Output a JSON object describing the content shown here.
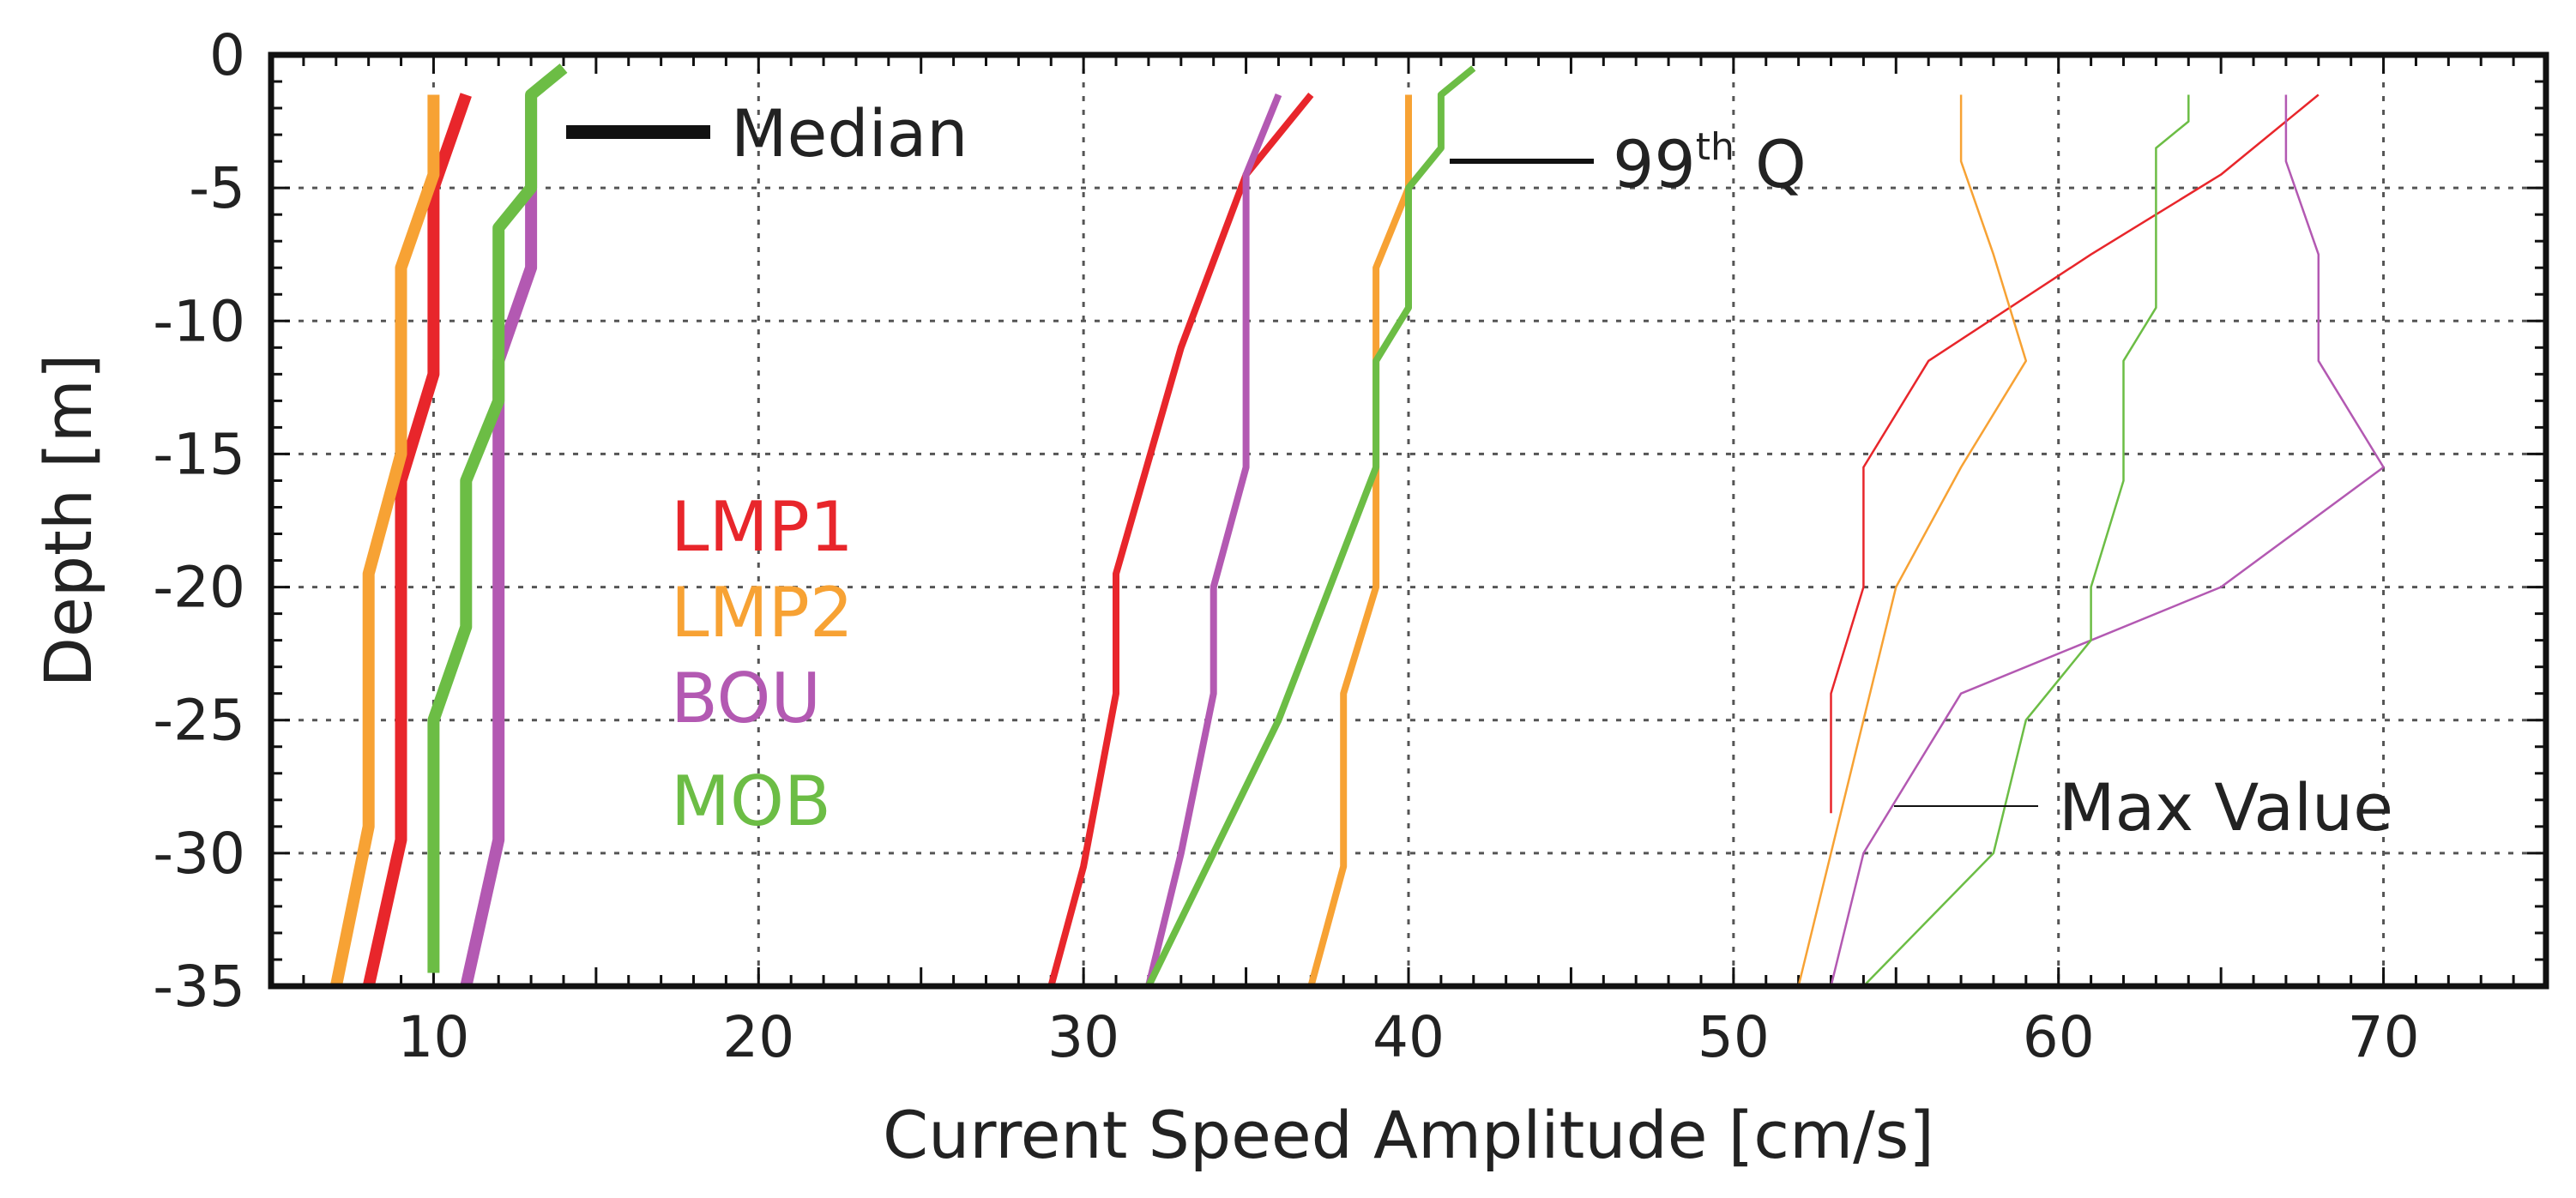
{
  "chart_data": {
    "type": "line",
    "xlabel": "Current Speed Amplitude [cm/s]",
    "ylabel": "Depth [m]",
    "xlim": [
      5,
      75
    ],
    "ylim": [
      -35,
      0
    ],
    "xticks": [
      10,
      20,
      30,
      40,
      50,
      60,
      70
    ],
    "xtick_labels": [
      "10",
      "20",
      "30",
      "40",
      "50",
      "60",
      "70"
    ],
    "yticks": [
      0,
      -5,
      -10,
      -15,
      -20,
      -25,
      -30,
      -35
    ],
    "ytick_labels": [
      "0",
      "-5",
      "-10",
      "-15",
      "-20",
      "-25",
      "-30",
      "-35"
    ],
    "grid": true,
    "colors": {
      "LMP1": "#e8262b",
      "LMP2": "#f7a234",
      "BOU": "#b359b2",
      "MOB": "#6cbd45"
    },
    "stations": [
      {
        "name": "LMP1",
        "color": "#e8262b"
      },
      {
        "name": "LMP2",
        "color": "#f7a234"
      },
      {
        "name": "BOU",
        "color": "#b359b2"
      },
      {
        "name": "MOB",
        "color": "#6cbd45"
      }
    ],
    "statistics": [
      {
        "name": "Median",
        "sup": "",
        "legend_label": "Median"
      },
      {
        "name": "99th Q",
        "sup": "th",
        "legend_label": "99",
        "legend_label_suffix": " Q"
      },
      {
        "name": "Max Value",
        "sup": "",
        "legend_label": "Max Value"
      }
    ],
    "series": [
      {
        "station": "LMP1",
        "statistic": "Median",
        "points": [
          [
            11,
            -1.5
          ],
          [
            10,
            -5
          ],
          [
            10,
            -12
          ],
          [
            9,
            -16
          ],
          [
            9,
            -29.5
          ],
          [
            8,
            -35
          ]
        ]
      },
      {
        "station": "LMP2",
        "statistic": "Median",
        "points": [
          [
            10,
            -1.5
          ],
          [
            10,
            -4.5
          ],
          [
            9,
            -8
          ],
          [
            9,
            -15
          ],
          [
            8,
            -19.5
          ],
          [
            8,
            -29
          ],
          [
            7,
            -35
          ]
        ]
      },
      {
        "station": "BOU",
        "statistic": "Median",
        "points": [
          [
            13,
            -1.5
          ],
          [
            13,
            -8
          ],
          [
            12,
            -11.5
          ],
          [
            12,
            -29.5
          ],
          [
            11,
            -35
          ]
        ]
      },
      {
        "station": "MOB",
        "statistic": "Median",
        "points": [
          [
            14,
            -0.5
          ],
          [
            13,
            -1.5
          ],
          [
            13,
            -5
          ],
          [
            12,
            -6.5
          ],
          [
            12,
            -13
          ],
          [
            11,
            -16
          ],
          [
            11,
            -21.5
          ],
          [
            10,
            -25
          ],
          [
            10,
            -34.5
          ]
        ]
      },
      {
        "station": "LMP1",
        "statistic": "99th Q",
        "points": [
          [
            37,
            -1.5
          ],
          [
            35,
            -4.5
          ],
          [
            33,
            -11
          ],
          [
            31,
            -19.5
          ],
          [
            31,
            -24
          ],
          [
            30,
            -30.5
          ],
          [
            29,
            -35
          ]
        ]
      },
      {
        "station": "LMP2",
        "statistic": "99th Q",
        "points": [
          [
            40,
            -1.5
          ],
          [
            40,
            -5
          ],
          [
            39,
            -8
          ],
          [
            39,
            -20
          ],
          [
            38,
            -24
          ],
          [
            38,
            -30.5
          ],
          [
            37,
            -35
          ]
        ]
      },
      {
        "station": "BOU",
        "statistic": "99th Q",
        "points": [
          [
            36,
            -1.5
          ],
          [
            35,
            -4.5
          ],
          [
            35,
            -15.5
          ],
          [
            34,
            -20
          ],
          [
            34,
            -24
          ],
          [
            33,
            -30
          ],
          [
            32,
            -35
          ]
        ]
      },
      {
        "station": "MOB",
        "statistic": "99th Q",
        "points": [
          [
            42,
            -0.5
          ],
          [
            41,
            -1.5
          ],
          [
            41,
            -3.5
          ],
          [
            40,
            -5
          ],
          [
            40,
            -9.5
          ],
          [
            39,
            -11.5
          ],
          [
            39,
            -15.5
          ],
          [
            36,
            -25
          ],
          [
            32,
            -35
          ]
        ]
      },
      {
        "station": "LMP1",
        "statistic": "Max Value",
        "points": [
          [
            68,
            -1.5
          ],
          [
            65,
            -4.5
          ],
          [
            61,
            -7.5
          ],
          [
            56,
            -11.5
          ],
          [
            54,
            -15.5
          ],
          [
            54,
            -20
          ],
          [
            53,
            -24
          ],
          [
            53,
            -28.5
          ]
        ]
      },
      {
        "station": "LMP2",
        "statistic": "Max Value",
        "points": [
          [
            57,
            -1.5
          ],
          [
            57,
            -4
          ],
          [
            58,
            -7.5
          ],
          [
            59,
            -11.5
          ],
          [
            57,
            -15.5
          ],
          [
            55,
            -20
          ],
          [
            54,
            -25
          ],
          [
            52,
            -35
          ]
        ]
      },
      {
        "station": "BOU",
        "statistic": "Max Value",
        "points": [
          [
            67,
            -1.5
          ],
          [
            67,
            -4
          ],
          [
            68,
            -7.5
          ],
          [
            68,
            -11.5
          ],
          [
            70,
            -15.5
          ],
          [
            65,
            -20
          ],
          [
            57,
            -24
          ],
          [
            54,
            -30
          ],
          [
            53,
            -35
          ]
        ]
      },
      {
        "station": "MOB",
        "statistic": "Max Value",
        "points": [
          [
            64,
            -1.5
          ],
          [
            64,
            -2.5
          ],
          [
            63,
            -3.5
          ],
          [
            63,
            -9.5
          ],
          [
            62,
            -11.5
          ],
          [
            62,
            -16
          ],
          [
            61,
            -20
          ],
          [
            61,
            -22
          ],
          [
            59,
            -25
          ],
          [
            58,
            -30
          ],
          [
            54,
            -35
          ]
        ]
      }
    ]
  }
}
